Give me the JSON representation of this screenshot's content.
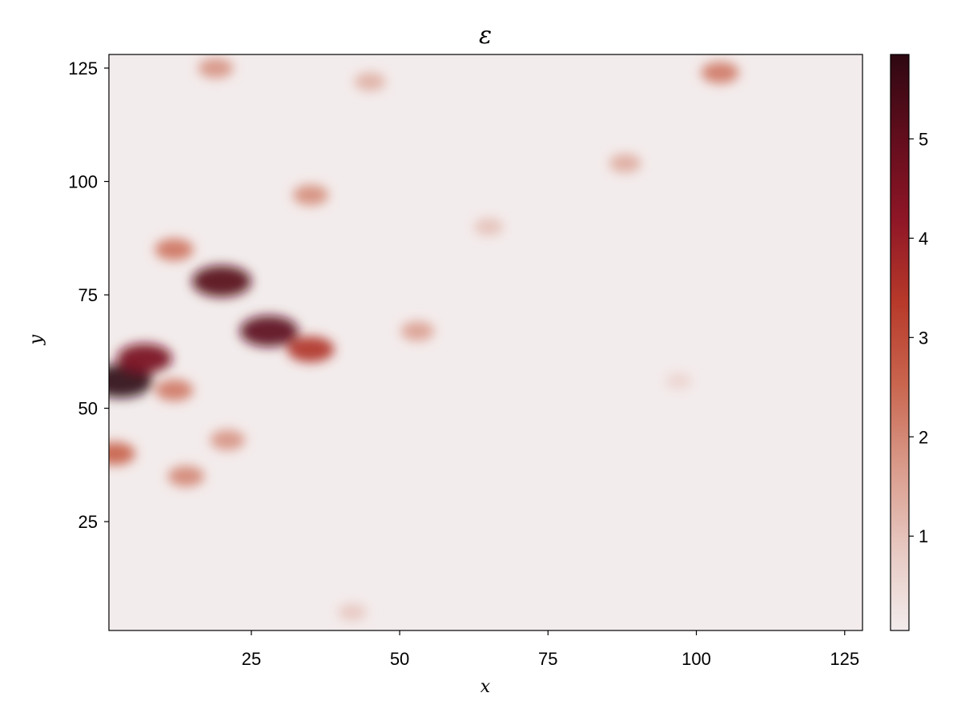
{
  "chart_data": {
    "type": "heatmap",
    "title": "ε",
    "xlabel": "x",
    "ylabel": "y",
    "xlim": [
      1,
      128
    ],
    "ylim": [
      1,
      128
    ],
    "xticks": [
      25,
      50,
      75,
      100,
      125
    ],
    "yticks": [
      25,
      50,
      75,
      100,
      125
    ],
    "colorbar": {
      "range": [
        0.05,
        5.85
      ],
      "ticks": [
        1,
        2,
        3,
        4,
        5
      ],
      "colors": [
        "#f3ecec",
        "#e7c8c1",
        "#d99a8a",
        "#c9654e",
        "#b7392a",
        "#8e1626",
        "#610d1c",
        "#2e0812"
      ]
    },
    "features": [
      {
        "x": 3,
        "y": 56,
        "value": 5.8
      },
      {
        "x": 7,
        "y": 61,
        "value": 4.6
      },
      {
        "x": 2,
        "y": 40,
        "value": 2.6
      },
      {
        "x": 20,
        "y": 78,
        "value": 5.2
      },
      {
        "x": 28,
        "y": 67,
        "value": 5.1
      },
      {
        "x": 35,
        "y": 63,
        "value": 3.5
      },
      {
        "x": 12,
        "y": 85,
        "value": 2.3
      },
      {
        "x": 12,
        "y": 54,
        "value": 2.2
      },
      {
        "x": 14,
        "y": 35,
        "value": 2.0
      },
      {
        "x": 21,
        "y": 43,
        "value": 1.8
      },
      {
        "x": 35,
        "y": 97,
        "value": 1.9
      },
      {
        "x": 19,
        "y": 125,
        "value": 1.8
      },
      {
        "x": 104,
        "y": 124,
        "value": 2.2
      },
      {
        "x": 53,
        "y": 67,
        "value": 1.6
      },
      {
        "x": 88,
        "y": 104,
        "value": 1.4
      },
      {
        "x": 65,
        "y": 90,
        "value": 1.0
      },
      {
        "x": 45,
        "y": 122,
        "value": 1.3
      },
      {
        "x": 42,
        "y": 5,
        "value": 0.9
      },
      {
        "x": 97,
        "y": 56,
        "value": 0.6
      }
    ]
  }
}
